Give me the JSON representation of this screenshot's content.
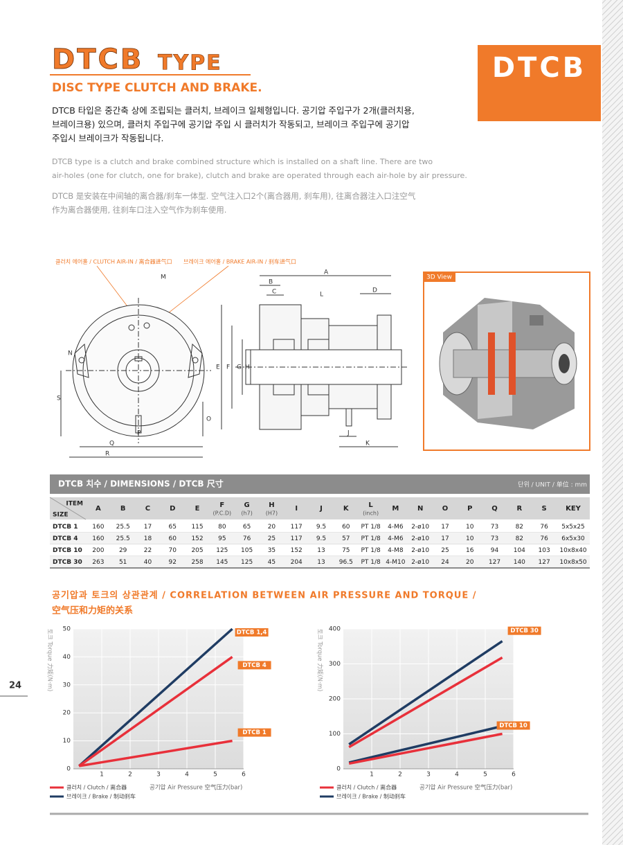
{
  "header": {
    "title_main": "DTCB",
    "title_type": "TYPE",
    "subtitle": "DISC TYPE CLUTCH AND BRAKE.",
    "badge": "DTCB"
  },
  "description": {
    "korean": [
      "DTCB 타입은 중간축 상에 조립되는 클러치, 브레이크 일체형입니다. 공기압 주입구가 2개(클러치용,",
      "브레이크용) 있으며, 클러치 주입구에 공기압 주입 시 클러치가 작동되고, 브레이크 주입구에 공기압",
      "주입시 브레이크가 작동됩니다."
    ],
    "english": [
      "DTCB type is a clutch and brake combined structure which is installed on a shaft line. There are two",
      "air-holes (one for clutch, one for brake), clutch and brake are operated through each air-hole by air pressure."
    ],
    "chinese": [
      "DTCB 是安装在中间轴的离合器/刹车一体型. 空气注入口2个(离合器用, 刹车用), 往离合器注入口注空气",
      "作为离合器使用, 往刹车口注入空气作为刹车使用."
    ]
  },
  "drawing": {
    "clutch_air_in": "클러치 에어홀 / CLUTCH AIR-IN / 离合器进气口",
    "brake_air_in": "브레이크 에어홀 / BRAKE AIR-IN / 刹车进气口",
    "front_labels": [
      "M",
      "N",
      "S",
      "O",
      "P",
      "Q",
      "R"
    ],
    "side_labels": [
      "A",
      "B",
      "C",
      "D",
      "L",
      "E",
      "F",
      "G",
      "H",
      "J",
      "K"
    ],
    "view_3d": "3D View"
  },
  "table": {
    "title": "DTCB 치수 / DIMENSIONS / DTCB 尺寸",
    "unit": "단위 / UNIT / 单位 : mm",
    "corner": [
      "ITEM",
      "SIZE"
    ],
    "header": [
      [
        "A"
      ],
      [
        "B"
      ],
      [
        "C"
      ],
      [
        "D"
      ],
      [
        "E"
      ],
      [
        "F",
        "(P.C.D)"
      ],
      [
        "G",
        "(h7)"
      ],
      [
        "H",
        "(H7)"
      ],
      [
        "I"
      ],
      [
        "J"
      ],
      [
        "K"
      ],
      [
        "L",
        "(inch)"
      ],
      [
        "M"
      ],
      [
        "N"
      ],
      [
        "O"
      ],
      [
        "P"
      ],
      [
        "Q"
      ],
      [
        "R"
      ],
      [
        "S"
      ],
      [
        "KEY"
      ]
    ],
    "rows": [
      [
        "DTCB 1",
        "160",
        "25.5",
        "17",
        "65",
        "115",
        "80",
        "65",
        "20",
        "117",
        "9.5",
        "60",
        "PT 1/8",
        "4-M6",
        "2-ø10",
        "17",
        "10",
        "73",
        "82",
        "76",
        "5x5x25"
      ],
      [
        "DTCB 4",
        "160",
        "25.5",
        "18",
        "60",
        "152",
        "95",
        "76",
        "25",
        "117",
        "9.5",
        "57",
        "PT 1/8",
        "4-M6",
        "2-ø10",
        "17",
        "10",
        "73",
        "82",
        "76",
        "6x5x30"
      ],
      [
        "DTCB 10",
        "200",
        "29",
        "22",
        "70",
        "205",
        "125",
        "105",
        "35",
        "152",
        "13",
        "75",
        "PT 1/8",
        "4-M8",
        "2-ø10",
        "25",
        "16",
        "94",
        "104",
        "103",
        "10x8x40"
      ],
      [
        "DTCB 30",
        "263",
        "51",
        "40",
        "92",
        "258",
        "145",
        "125",
        "45",
        "204",
        "13",
        "96.5",
        "PT 1/8",
        "4-M10",
        "2-ø10",
        "24",
        "20",
        "127",
        "140",
        "127",
        "10x8x50"
      ]
    ]
  },
  "section": {
    "title_line1": "공기압과 토크의 상관관계 / CORRELATION BETWEEN AIR PRESSURE AND TORQUE /",
    "title_line2": "空气压和力矩的关系"
  },
  "page_number": "24",
  "chart_data": [
    {
      "type": "line",
      "y_label": "토크 Torque 力矩(N·m)",
      "x_label": "공기압  Air Pressure 空气压力(bar)",
      "x": [
        0.2,
        5.6
      ],
      "xlim": [
        0,
        6
      ],
      "xticks": [
        1,
        2,
        3,
        4,
        5,
        6
      ],
      "ylim": [
        0,
        50
      ],
      "yticks": [
        0,
        10,
        20,
        30,
        40,
        50
      ],
      "grid": true,
      "series": [
        {
          "name": "DTCB 1,4",
          "color": "#1f3c63",
          "values": [
            1,
            50
          ]
        },
        {
          "name": "DTCB 4",
          "color": "#e8303a",
          "values": [
            1,
            40
          ]
        },
        {
          "name": "DTCB 1",
          "color": "#e8303a",
          "values": [
            1,
            10
          ]
        }
      ],
      "legend": [
        {
          "name": "클러치 / Clutch / 离合器",
          "color": "#e8303a"
        },
        {
          "name": "브레이크 / Brake / 制动刹车",
          "color": "#1f3c63"
        }
      ]
    },
    {
      "type": "line",
      "y_label": "토크 Torque 力矩(N·m)",
      "x_label": "공기압  Air Pressure 空气压力(bar)",
      "x": [
        0.2,
        5.6
      ],
      "xlim": [
        0,
        6
      ],
      "xticks": [
        1,
        2,
        3,
        4,
        5,
        6
      ],
      "ylim": [
        0,
        400
      ],
      "yticks": [
        0,
        100,
        200,
        300,
        400
      ],
      "grid": true,
      "series": [
        {
          "name": "DTCB 30",
          "color": "#1f3c63",
          "values": [
            70,
            365
          ]
        },
        {
          "name": "DTCB 30",
          "color": "#e8303a",
          "values": [
            62,
            318
          ]
        },
        {
          "name": "DTCB 10",
          "color": "#1f3c63",
          "values": [
            18,
            122
          ]
        },
        {
          "name": "DTCB 10",
          "color": "#e8303a",
          "values": [
            15,
            100
          ]
        }
      ],
      "legend": [
        {
          "name": "클러치 / Clutch / 离合器",
          "color": "#e8303a"
        },
        {
          "name": "브레이크 / Brake / 制动刹车",
          "color": "#1f3c63"
        }
      ]
    }
  ]
}
